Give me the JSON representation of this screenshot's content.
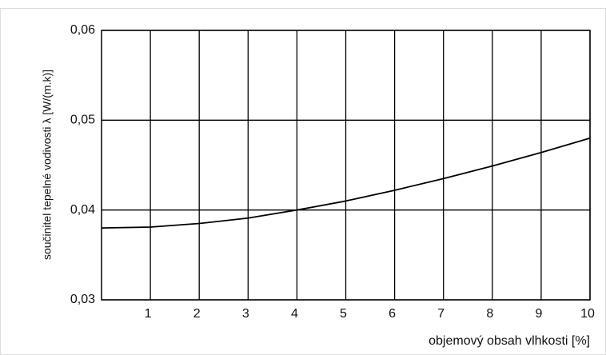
{
  "chart_data": {
    "type": "line",
    "x": [
      0,
      1,
      2,
      3,
      4,
      5,
      6,
      7,
      8,
      9,
      10
    ],
    "values": [
      0.038,
      0.0381,
      0.0385,
      0.0391,
      0.04,
      0.041,
      0.0422,
      0.0435,
      0.0449,
      0.0464,
      0.048
    ],
    "color": "#000000",
    "xlabel": "objemový obsah vlhkosti [%]",
    "ylabel": "součinitel tepelné vodivosti λ [W/(m.k)]",
    "xlim": [
      0,
      10
    ],
    "xticks": [
      1,
      2,
      3,
      4,
      5,
      6,
      7,
      8,
      9,
      10
    ],
    "ylim": [
      0.03,
      0.06
    ],
    "yticks": [
      {
        "value": 0.03,
        "label": "0,03"
      },
      {
        "value": 0.04,
        "label": "0,04"
      },
      {
        "value": 0.05,
        "label": "0,05"
      },
      {
        "value": 0.06,
        "label": "0,06"
      }
    ],
    "grid": true
  }
}
